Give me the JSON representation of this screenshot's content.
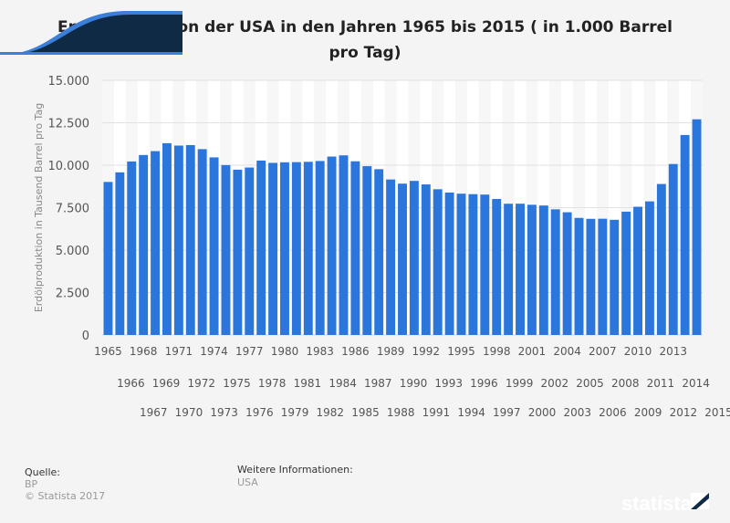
{
  "chart_data": {
    "type": "bar",
    "title": "Erdölproduktion der USA in den Jahren 1965 bis 2015 ( in 1.000 Barrel pro Tag)",
    "ylabel": "Erdölproduktion in Tausend Barrel pro Tag",
    "xlabel": "",
    "ylim": [
      0,
      15000
    ],
    "yticks": [
      "0",
      "2.500",
      "5.000",
      "7.500",
      "10.000",
      "12.500",
      "15.000"
    ],
    "grid": true,
    "bar_color": "#2a76dd",
    "categories": [
      "1965",
      "1966",
      "1967",
      "1968",
      "1969",
      "1970",
      "1971",
      "1972",
      "1973",
      "1974",
      "1975",
      "1976",
      "1977",
      "1978",
      "1979",
      "1980",
      "1981",
      "1982",
      "1983",
      "1984",
      "1985",
      "1986",
      "1987",
      "1988",
      "1989",
      "1990",
      "1991",
      "1992",
      "1993",
      "1994",
      "1995",
      "1996",
      "1997",
      "1998",
      "1999",
      "2000",
      "2001",
      "2002",
      "2003",
      "2004",
      "2005",
      "2006",
      "2007",
      "2008",
      "2009",
      "2010",
      "2011",
      "2012",
      "2013",
      "2014",
      "2015"
    ],
    "values": [
      9014,
      9579,
      10219,
      10600,
      10828,
      11297,
      11156,
      11185,
      10946,
      10461,
      10008,
      9736,
      9863,
      10274,
      10136,
      10170,
      10181,
      10199,
      10247,
      10509,
      10580,
      10231,
      9944,
      9765,
      9159,
      8914,
      9076,
      8868,
      8583,
      8389,
      8322,
      8295,
      8269,
      8011,
      7731,
      7733,
      7669,
      7626,
      7400,
      7228,
      6895,
      6841,
      6847,
      6783,
      7263,
      7552,
      7868,
      8894,
      10071,
      11779,
      12704
    ]
  },
  "footer": {
    "source_label": "Quelle:",
    "source": "BP",
    "copyright": "© Statista 2017",
    "info_label": "Weitere Informationen:",
    "info": "USA",
    "brand": "statista"
  }
}
